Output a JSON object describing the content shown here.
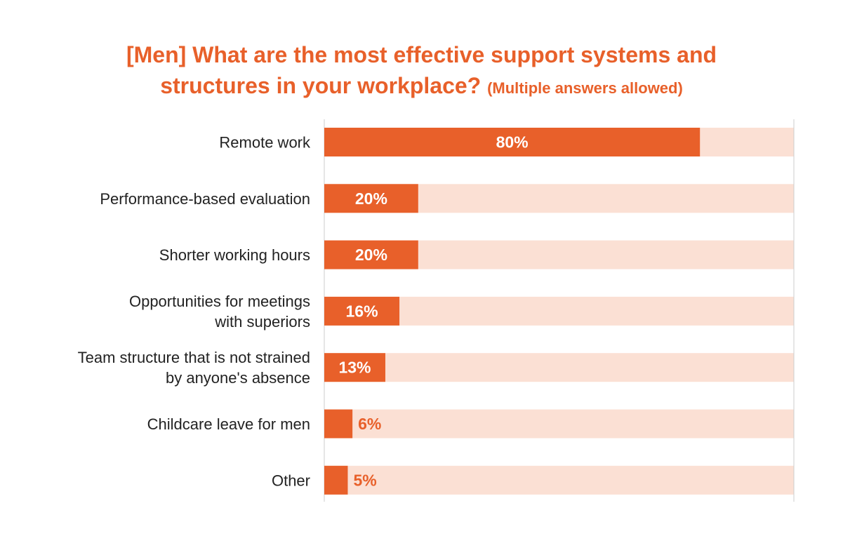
{
  "chart_data": {
    "type": "bar",
    "orientation": "horizontal",
    "title_line1": "[Men] What are the most effective support systems and",
    "title_line2": "structures in your workplace?",
    "title_note": "(Multiple answers allowed)",
    "categories": [
      [
        "Remote work"
      ],
      [
        "Performance-based evaluation"
      ],
      [
        "Shorter working hours"
      ],
      [
        "Opportunities for meetings",
        "with superiors"
      ],
      [
        "Team structure that is not strained",
        "by anyone's absence"
      ],
      [
        "Childcare leave for men"
      ],
      [
        "Other"
      ]
    ],
    "values": [
      80,
      20,
      20,
      16,
      13,
      6,
      5
    ],
    "value_labels": [
      "80%",
      "20%",
      "20%",
      "16%",
      "13%",
      "6%",
      "5%"
    ],
    "xlim": [
      0,
      100
    ],
    "grid": false,
    "colors": {
      "bar": "#e8602a",
      "track": "#fbe0d4",
      "label_inside": "#ffffff",
      "label_outside": "#e8602a",
      "axis": "#cccccc"
    }
  }
}
